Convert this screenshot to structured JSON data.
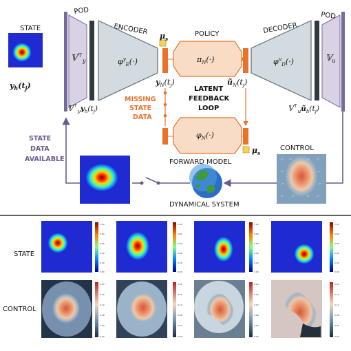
{
  "labels": {
    "state": "STATE",
    "pod_left": "POD",
    "pod_right": "POD",
    "encoder": "ENCODER",
    "decoder": "DECODER",
    "policy": "POLICY",
    "latent_1": "LATENT",
    "latent_2": "FEEDBACK",
    "latent_3": "LOOP",
    "missing_1": "MISSING",
    "missing_2": "STATE",
    "missing_3": "DATA",
    "available_1": "STATE",
    "available_2": "DATA",
    "available_3": "AVAILABLE",
    "forward_model": "FORWARD MODEL",
    "control": "CONTROL",
    "dynamical_system": "DYNAMICAL SYSTEM",
    "row_state": "STATE",
    "row_control": "CONTROL"
  },
  "math": {
    "yh": "y",
    "yh_sub": "h",
    "yh_arg": "(t",
    "yh_arg_sub": "j",
    "yh_close": ")",
    "Vy_T": "𝕍",
    "Vy_sup": "⊤",
    "Vy_sub": "y",
    "Vy_y": "y",
    "Vy_y_sub": "h",
    "Vy_y_arg": "(t",
    "Vy_y_arg_sub": "j",
    "Vy_y_close": ")",
    "phiE": "φ",
    "phiE_sup": "y",
    "phiE_sub": "E",
    "phiE_arg": "(·)",
    "yN": "y",
    "yN_sub": "N",
    "yN_arg": "(t",
    "yN_arg_sub": "j",
    "yN_close": ")",
    "mu_s": "μ",
    "mu_s_sub": "s",
    "piN": "π",
    "piN_sub": "N",
    "piN_arg": "(·)",
    "uN": "ũ",
    "uN_sub": "N",
    "uN_arg": "(t",
    "uN_arg_sub": "j",
    "uN_close": ")",
    "phiD": "φ",
    "phiD_sup": "u",
    "phiD_sub": "D",
    "phiD_arg": "(·)",
    "Vu": "𝕍",
    "Vu_sub": "u",
    "Vu_u": "𝕍",
    "Vu_u_sub": "u",
    "Vu_u_sup": "⊤",
    "Vu_u_u": "ũ",
    "Vu_u_u_sub": "h",
    "Vu_u_arg": "(t",
    "Vu_u_arg_sub": "j",
    "Vu_u_close": ")",
    "phiN": "φ",
    "phiN_sub": "N",
    "phiN_arg": "(·)",
    "mu_s2": "μ",
    "mu_s2_sub": "s"
  },
  "colors": {
    "pod_fill": "#d9d2e4",
    "pod_bar": "#7a6a9c",
    "dark_bar": "#2f3a40",
    "autoencoder_fill": "#d3dbe0",
    "latent_fill": "#f9dcc6",
    "latent_stroke": "#e8732b",
    "orange": "#e8732b",
    "mu_fill": "#f3d25a",
    "purple": "#6a5a8e",
    "loop_line": "#6a5a8e"
  },
  "colorbars": {
    "state_1": [
      "1.00",
      "0.80",
      "0.60",
      "0.40",
      "0.20",
      "0.00"
    ],
    "state_2": [
      "1.00",
      "0.80",
      "0.60",
      "0.40",
      "0.20",
      "0.00"
    ],
    "state_3": [
      "1.00",
      "0.80",
      "0.60",
      "0.40",
      "0.20",
      "0.00"
    ],
    "state_4": [
      "1.00",
      "0.80",
      "0.60",
      "0.40",
      "0.20",
      "0.00"
    ],
    "control_1": [
      "0.20",
      "0.16",
      "0.12",
      "0.08",
      "0.04",
      "0.00"
    ],
    "control_2": [
      "0.20",
      "0.16",
      "0.12",
      "0.08",
      "0.04",
      "0.00"
    ],
    "control_3": [
      "0.20",
      "0.16",
      "0.12",
      "0.08",
      "0.04",
      "0.00"
    ],
    "control_4": [
      "0.20",
      "0.16",
      "0.12",
      "0.08",
      "0.04",
      "0.00"
    ]
  }
}
